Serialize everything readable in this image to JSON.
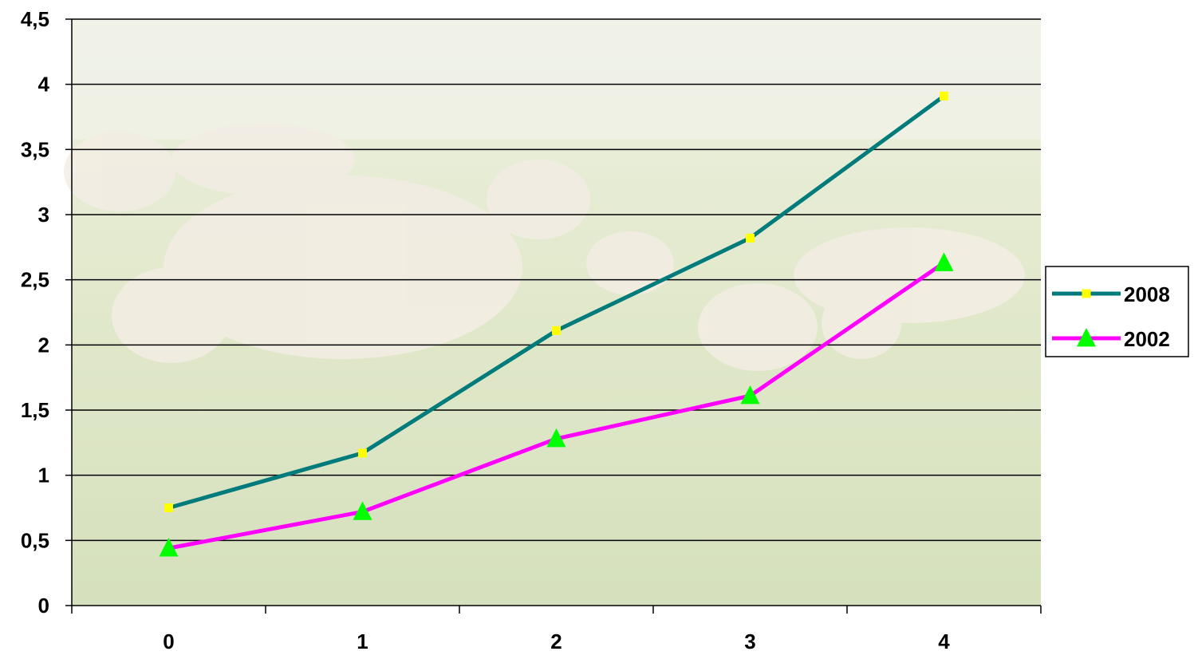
{
  "chart_data": {
    "type": "line",
    "x": [
      "0",
      "1",
      "2",
      "3",
      "4"
    ],
    "ylim": [
      0,
      4.5
    ],
    "y_ticks": [
      "0",
      "0,5",
      "1",
      "1,5",
      "2",
      "2,5",
      "3",
      "3,5",
      "4",
      "4,5"
    ],
    "y_tick_values": [
      0,
      0.5,
      1,
      1.5,
      2,
      2.5,
      3,
      3.5,
      4,
      4.5
    ],
    "grid": true,
    "legend_position": "right",
    "background": "faded photo of white cattle grazing on grass",
    "series": [
      {
        "name": "2008",
        "values": [
          0.75,
          1.17,
          2.11,
          2.82,
          3.91
        ],
        "line_color": "#007B7B",
        "marker": "square",
        "marker_color": "#FFFF00"
      },
      {
        "name": "2002",
        "values": [
          0.44,
          0.72,
          1.28,
          1.61,
          2.63
        ],
        "line_color": "#FF00FF",
        "marker": "triangle",
        "marker_color": "#00FF00"
      }
    ]
  }
}
